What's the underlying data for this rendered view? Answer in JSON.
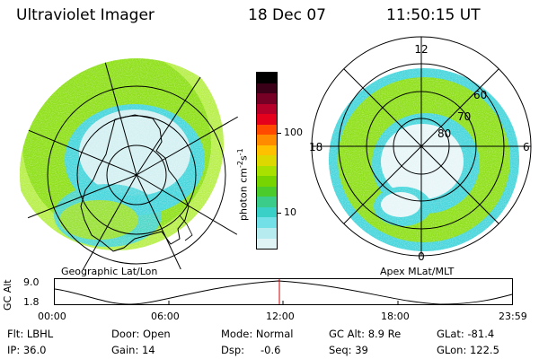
{
  "header": {
    "instrument": "Ultraviolet Imager",
    "date": "18 Dec 07",
    "time": "11:50:15 UT"
  },
  "colors": {
    "aurora_green": "#8fe01a",
    "aurora_light_green": "#b8ef4a",
    "aurora_cyan": "#48d6dc",
    "aurora_pale": "#d4f0f2",
    "grid_line": "#000000",
    "orbit_marker": "#cc0000"
  },
  "geographic_panel": {
    "label": "Geographic Lat/Lon"
  },
  "apex_panel": {
    "label": "Apex MLat/MLT",
    "mlt_labels": {
      "top": "12",
      "left": "18",
      "right": "6",
      "bottom": "0"
    },
    "lat_labels": [
      "60",
      "70",
      "80"
    ]
  },
  "colorbar": {
    "unit": "photon cm",
    "unit_sup1": "-2",
    "unit_mid": "s",
    "unit_sup2": "-1",
    "tick_100": "100",
    "tick_10": "10",
    "colors": [
      "#000000",
      "#3a0018",
      "#760025",
      "#b5002a",
      "#e5001c",
      "#ff4a00",
      "#ff8c00",
      "#ffc000",
      "#dcd800",
      "#a8e000",
      "#78d400",
      "#4ccc2c",
      "#3acc88",
      "#3ad0c8",
      "#72e0e6",
      "#b6ecf0",
      "#e0f4f6"
    ]
  },
  "orbit_plot": {
    "ylabel": "GC Alt",
    "y_top": "9.0",
    "y_bottom": "1.8",
    "x_ticks": [
      "00:00",
      "06:00",
      "12:00",
      "18:00",
      "23:59"
    ]
  },
  "status": {
    "flt": "Flt: LBHL",
    "ip": "IP: 36.0",
    "door": "Door: Open",
    "gain": "Gain: 14",
    "mode": "Mode: Normal",
    "dsp": "Dsp:",
    "dsp_val": "-0.6",
    "gc_alt": "GC Alt: 8.9 Re",
    "seq": "Seq: 39",
    "glat": "GLat: -81.4",
    "glon": "GLon: 122.5"
  }
}
